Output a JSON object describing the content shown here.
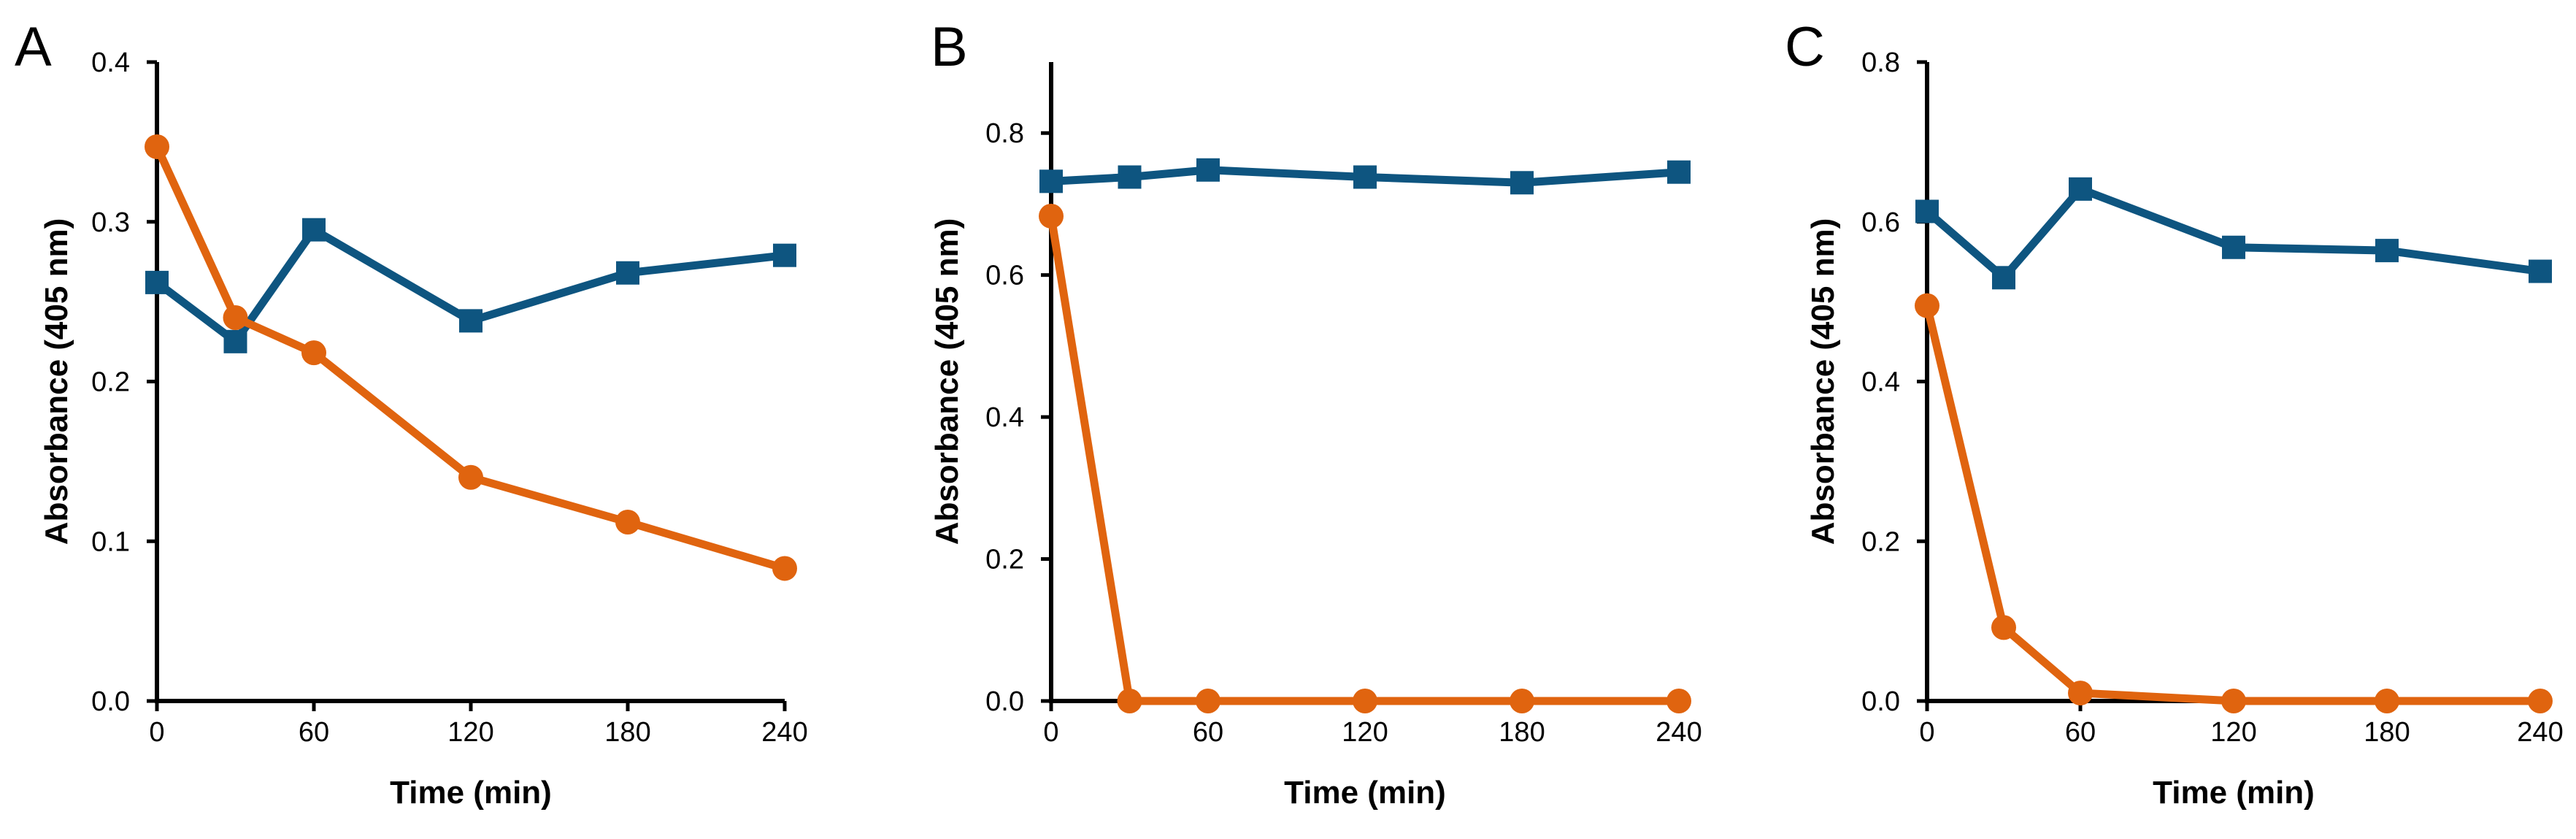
{
  "colors": {
    "series1": "#0e5580",
    "series2": "#e0640f"
  },
  "chart_data": [
    {
      "type": "line",
      "panel": "A",
      "xlabel": "Time (min)",
      "ylabel": "Absorbance (405 nm)",
      "x": [
        0,
        30,
        60,
        120,
        180,
        240
      ],
      "xticks": [
        0,
        60,
        120,
        180,
        240
      ],
      "xtick_labels": [
        "0",
        "60",
        "120",
        "180",
        "240"
      ],
      "xlim": [
        0,
        240
      ],
      "ylim": [
        0,
        0.4
      ],
      "yticks": [
        0,
        0.1,
        0.2,
        0.3,
        0.4
      ],
      "ytick_labels": [
        "0.0",
        "0.1",
        "0.2",
        "0.3",
        "0.4"
      ],
      "series": [
        {
          "name": "series-1",
          "marker": "square",
          "values": [
            0.262,
            0.225,
            0.295,
            0.238,
            0.268,
            0.279
          ]
        },
        {
          "name": "series-2",
          "marker": "circle",
          "values": [
            0.347,
            0.24,
            0.218,
            0.14,
            0.112,
            0.083
          ]
        }
      ]
    },
    {
      "type": "line",
      "panel": "B",
      "xlabel": "Time (min)",
      "ylabel": "Absorbance (405 nm)",
      "x": [
        0,
        30,
        60,
        120,
        180,
        240
      ],
      "xticks": [
        0,
        60,
        120,
        180,
        240
      ],
      "xtick_labels": [
        "0",
        "60",
        "120",
        "180",
        "240"
      ],
      "xlim": [
        0,
        240
      ],
      "ylim": [
        0,
        0.9
      ],
      "yticks": [
        0,
        0.2,
        0.4,
        0.6,
        0.8
      ],
      "ytick_labels": [
        "0.0",
        "0.2",
        "0.4",
        "0.6",
        "0.8"
      ],
      "series": [
        {
          "name": "series-1",
          "marker": "square",
          "values": [
            0.732,
            0.738,
            0.748,
            0.738,
            0.73,
            0.745
          ]
        },
        {
          "name": "series-2",
          "marker": "circle",
          "values": [
            0.683,
            0.0,
            0.0,
            0.0,
            0.0,
            0.0
          ]
        }
      ]
    },
    {
      "type": "line",
      "panel": "C",
      "xlabel": "Time (min)",
      "ylabel": "Absorbance (405 nm)",
      "x": [
        0,
        30,
        60,
        120,
        180,
        240
      ],
      "xticks": [
        0,
        60,
        120,
        180,
        240
      ],
      "xtick_labels": [
        "0",
        "60",
        "120",
        "180",
        "240"
      ],
      "xlim": [
        0,
        240
      ],
      "ylim": [
        0,
        0.8
      ],
      "yticks": [
        0,
        0.2,
        0.4,
        0.6,
        0.8
      ],
      "ytick_labels": [
        "0.0",
        "0.2",
        "0.4",
        "0.6",
        "0.8"
      ],
      "series": [
        {
          "name": "series-1",
          "marker": "square",
          "values": [
            0.613,
            0.53,
            0.641,
            0.568,
            0.564,
            0.538
          ]
        },
        {
          "name": "series-2",
          "marker": "circle",
          "values": [
            0.495,
            0.092,
            0.01,
            0.0,
            0.0,
            0.0
          ]
        }
      ]
    }
  ]
}
